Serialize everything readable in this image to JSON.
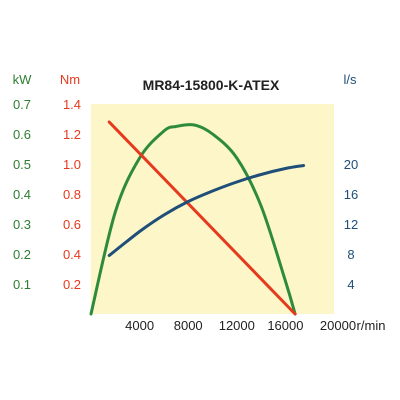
{
  "chart_data": {
    "type": "line",
    "title": "MR84-15800-K-ATEX",
    "x_unit": "r/min",
    "x_ticks": [
      4000,
      8000,
      12000,
      16000,
      20000
    ],
    "xlim": [
      0,
      20000
    ],
    "axes": {
      "kw": {
        "unit": "kW",
        "ylim": [
          0,
          0.7
        ],
        "ticks": [
          "0.1",
          "0.2",
          "0.3",
          "0.4",
          "0.5",
          "0.6",
          "0.7"
        ],
        "color": "#2e7d32"
      },
      "nm": {
        "unit": "Nm",
        "ylim": [
          0,
          1.4
        ],
        "ticks": [
          "0.2",
          "0.4",
          "0.6",
          "0.8",
          "1.0",
          "1.2",
          "1.4"
        ],
        "color": "#e53a1e"
      },
      "ls": {
        "unit": "l/s",
        "ylim": [
          0,
          28
        ],
        "ticks": [
          "4",
          "8",
          "12",
          "16",
          "20"
        ],
        "color": "#1f4e79"
      }
    },
    "series": [
      {
        "axis": "kw",
        "color": "#2e8b3e",
        "x": [
          0,
          2000,
          4000,
          6000,
          7000,
          8500,
          10000,
          12000,
          14000,
          16000,
          16800
        ],
        "values": [
          0,
          0.34,
          0.52,
          0.61,
          0.625,
          0.63,
          0.6,
          0.52,
          0.36,
          0.11,
          0
        ]
      },
      {
        "axis": "nm",
        "color": "#e53a1e",
        "x": [
          1500,
          16800
        ],
        "values": [
          1.28,
          0
        ]
      },
      {
        "axis": "ls",
        "color": "#1f4e79",
        "x": [
          1500,
          4000,
          6000,
          8000,
          10000,
          12000,
          14000,
          16000,
          17500
        ],
        "values": [
          7.8,
          11.0,
          13.2,
          15.0,
          16.4,
          17.6,
          18.6,
          19.4,
          19.8
        ]
      }
    ],
    "grid": false,
    "legend": "none",
    "background": "#fcf6c8"
  }
}
